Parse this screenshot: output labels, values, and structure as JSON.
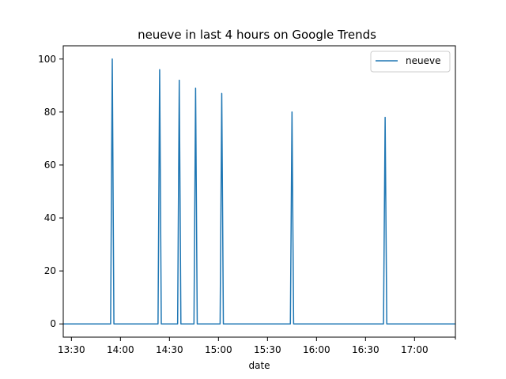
{
  "chart_data": {
    "type": "line",
    "title": "neueve in last 4 hours on Google Trends",
    "xlabel": "date",
    "ylabel": "",
    "x_ticks": [
      "13:30",
      "14:00",
      "14:30",
      "15:00",
      "15:30",
      "16:00",
      "16:30",
      "17:00"
    ],
    "x_tick_minutes": [
      810,
      840,
      870,
      900,
      930,
      960,
      990,
      1020
    ],
    "xlim_minutes": [
      805,
      1045
    ],
    "y_ticks": [
      0,
      20,
      40,
      60,
      80,
      100
    ],
    "ylim": [
      -5,
      105
    ],
    "grid": false,
    "legend_position": "top-right",
    "series": [
      {
        "name": "neueve",
        "color": "#1f77b4",
        "peaks": [
          {
            "time": "13:55",
            "minutes": 835,
            "value": 100
          },
          {
            "time": "14:24",
            "minutes": 864,
            "value": 96
          },
          {
            "time": "14:36",
            "minutes": 876,
            "value": 92
          },
          {
            "time": "14:46",
            "minutes": 886,
            "value": 89
          },
          {
            "time": "15:02",
            "minutes": 902,
            "value": 87
          },
          {
            "time": "15:45",
            "minutes": 945,
            "value": 80
          },
          {
            "time": "16:42",
            "minutes": 1002,
            "value": 78
          }
        ],
        "baseline": 0
      }
    ]
  }
}
